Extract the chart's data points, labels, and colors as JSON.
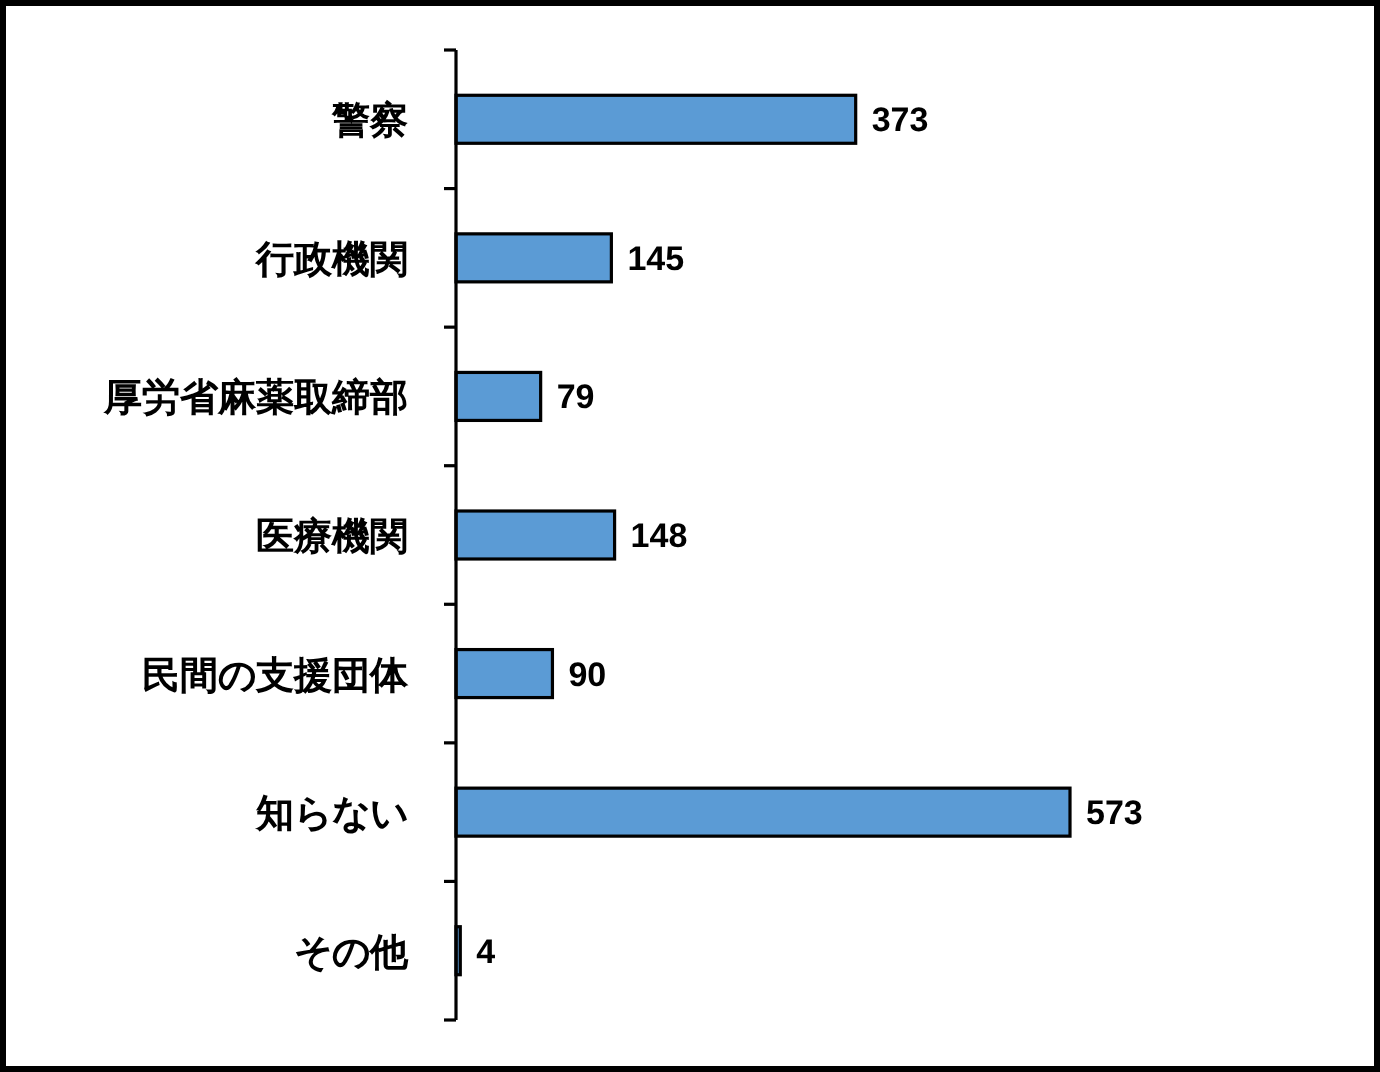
{
  "chart_data": {
    "type": "bar",
    "orientation": "horizontal",
    "categories": [
      "警察",
      "行政機関",
      "厚労省麻薬取締部",
      "医療機関",
      "民間の支援団体",
      "知らない",
      "その他"
    ],
    "values": [
      373,
      145,
      79,
      148,
      90,
      573,
      4
    ],
    "color": "#5b9bd5",
    "data_labels": true
  }
}
